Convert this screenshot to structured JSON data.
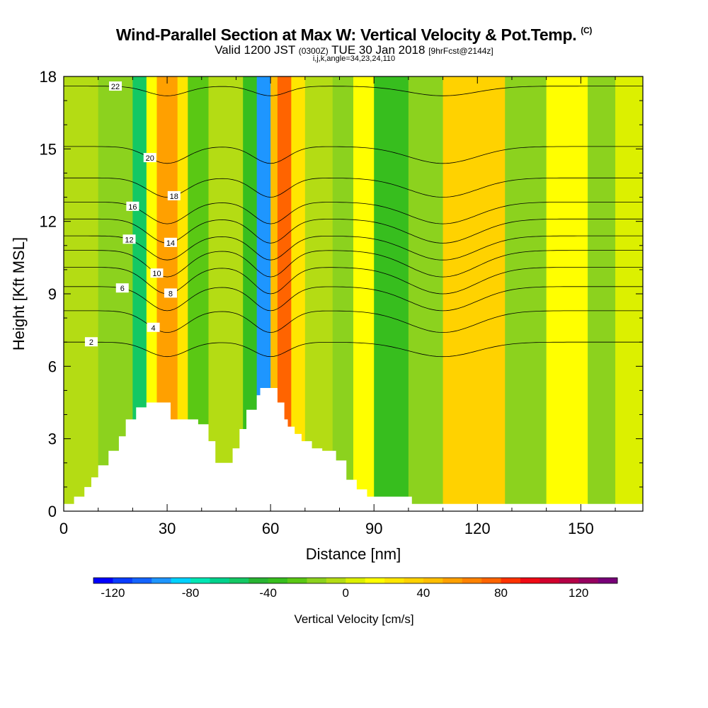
{
  "header": {
    "title": "Wind-Parallel Section at Max W: Vertical Velocity & Pot.Temp.",
    "copyright": "(C)",
    "valid_main_a": "Valid 1200 JST",
    "valid_small_a": "(0300Z)",
    "valid_main_b": "TUE 30 Jan 2018",
    "valid_small_b": "[9hrFcst@2144z]",
    "grid_info": "i,j,k,angle=34,23,24,110"
  },
  "chart_data": {
    "type": "heatmap",
    "xlabel": "Distance [nm]",
    "ylabel": "Height [Kft MSL]",
    "xlim": [
      0,
      168
    ],
    "ylim": [
      0,
      18
    ],
    "x_ticks": [
      "0",
      "30",
      "60",
      "90",
      "120",
      "150"
    ],
    "x_tick_values": [
      0,
      30,
      60,
      90,
      120,
      150
    ],
    "y_ticks": [
      "0",
      "3",
      "6",
      "9",
      "12",
      "15",
      "18"
    ],
    "y_tick_values": [
      0,
      3,
      6,
      9,
      12,
      15,
      18
    ],
    "field": "Vertical Velocity",
    "colorbar": {
      "title": "Vertical Velocity [cm/s]",
      "min": -130,
      "max": 140,
      "step": 10,
      "labels": [
        "-120",
        "-80",
        "-40",
        "0",
        "40",
        "80",
        "120"
      ],
      "label_values": [
        -120,
        -80,
        -40,
        0,
        40,
        80,
        120
      ],
      "colors": [
        "#0000ff",
        "#0a3cff",
        "#1464ff",
        "#1e96ff",
        "#00d2ff",
        "#00e6b4",
        "#00d28c",
        "#14c864",
        "#28b432",
        "#37be1e",
        "#5ac814",
        "#8cd21e",
        "#b4dc14",
        "#dcf000",
        "#ffff00",
        "#ffe600",
        "#ffd200",
        "#ffbe00",
        "#ffa000",
        "#ff8200",
        "#ff6400",
        "#ff3200",
        "#f00a14",
        "#d2002d",
        "#b40046",
        "#96005f",
        "#780078"
      ]
    },
    "velocity_bands": [
      {
        "x": [
          0,
          10
        ],
        "w": -10
      },
      {
        "x": [
          10,
          20
        ],
        "w": -20
      },
      {
        "x": [
          20,
          24
        ],
        "w": -60
      },
      {
        "x": [
          24,
          27
        ],
        "w": 10
      },
      {
        "x": [
          27,
          33
        ],
        "w": 50
      },
      {
        "x": [
          33,
          36
        ],
        "w": 20
      },
      {
        "x": [
          36,
          42
        ],
        "w": -30
      },
      {
        "x": [
          42,
          52
        ],
        "w": -10
      },
      {
        "x": [
          52,
          56
        ],
        "w": -40
      },
      {
        "x": [
          56,
          60
        ],
        "w": -100
      },
      {
        "x": [
          60,
          62
        ],
        "w": 40
      },
      {
        "x": [
          62,
          66
        ],
        "w": 70
      },
      {
        "x": [
          66,
          70
        ],
        "w": 20
      },
      {
        "x": [
          70,
          78
        ],
        "w": -10
      },
      {
        "x": [
          78,
          84
        ],
        "w": -20
      },
      {
        "x": [
          84,
          90
        ],
        "w": 10
      },
      {
        "x": [
          90,
          100
        ],
        "w": -40
      },
      {
        "x": [
          100,
          110
        ],
        "w": -20
      },
      {
        "x": [
          110,
          128
        ],
        "w": 30
      },
      {
        "x": [
          128,
          140
        ],
        "w": -20
      },
      {
        "x": [
          140,
          152
        ],
        "w": 10
      },
      {
        "x": [
          152,
          160
        ],
        "w": -20
      },
      {
        "x": [
          160,
          168
        ],
        "w": 0
      }
    ],
    "theta_contours": [
      {
        "label": "2",
        "y0": 7.0,
        "dip": 0.6,
        "label_x": 8
      },
      {
        "label": "4",
        "y0": 8.3,
        "dip": 0.9,
        "label_x": 26
      },
      {
        "label": "6",
        "y0": 9.3,
        "dip": 1.0,
        "label_x": 17
      },
      {
        "label": "8",
        "y0": 10.1,
        "dip": 1.1,
        "label_x": 31
      },
      {
        "label": "10",
        "y0": 10.8,
        "dip": 1.1,
        "label_x": 27
      },
      {
        "label": "12",
        "y0": 11.4,
        "dip": 1.0,
        "label_x": 19
      },
      {
        "label": "14",
        "y0": 12.1,
        "dip": 1.0,
        "label_x": 31
      },
      {
        "label": "16",
        "y0": 12.8,
        "dip": 0.9,
        "label_x": 20
      },
      {
        "label": "18",
        "y0": 13.8,
        "dip": 0.8,
        "label_x": 32
      },
      {
        "label": "20",
        "y0": 15.1,
        "dip": 0.7,
        "label_x": 25
      },
      {
        "label": "22",
        "y0": 17.6,
        "dip": 0.4,
        "label_x": 15
      }
    ],
    "terrain": [
      [
        0,
        0.3
      ],
      [
        3,
        0.6
      ],
      [
        6,
        1.0
      ],
      [
        8,
        1.4
      ],
      [
        10,
        1.9
      ],
      [
        13,
        2.5
      ],
      [
        16,
        3.1
      ],
      [
        18,
        3.8
      ],
      [
        21,
        4.3
      ],
      [
        24,
        4.5
      ],
      [
        29,
        4.5
      ],
      [
        31,
        3.8
      ],
      [
        37,
        3.8
      ],
      [
        39,
        3.6
      ],
      [
        42,
        2.9
      ],
      [
        44,
        2.0
      ],
      [
        47,
        2.0
      ],
      [
        49,
        2.6
      ],
      [
        51,
        3.4
      ],
      [
        53,
        4.2
      ],
      [
        55,
        4.2
      ],
      [
        56,
        4.8
      ],
      [
        57,
        5.1
      ],
      [
        61,
        5.1
      ],
      [
        62,
        4.5
      ],
      [
        64,
        3.8
      ],
      [
        65,
        3.5
      ],
      [
        67,
        3.2
      ],
      [
        69,
        2.9
      ],
      [
        72,
        2.6
      ],
      [
        75,
        2.5
      ],
      [
        79,
        2.1
      ],
      [
        82,
        1.3
      ],
      [
        85,
        0.9
      ],
      [
        88,
        0.6
      ],
      [
        100,
        0.6
      ],
      [
        101,
        0.3
      ],
      [
        168,
        0.3
      ]
    ]
  }
}
